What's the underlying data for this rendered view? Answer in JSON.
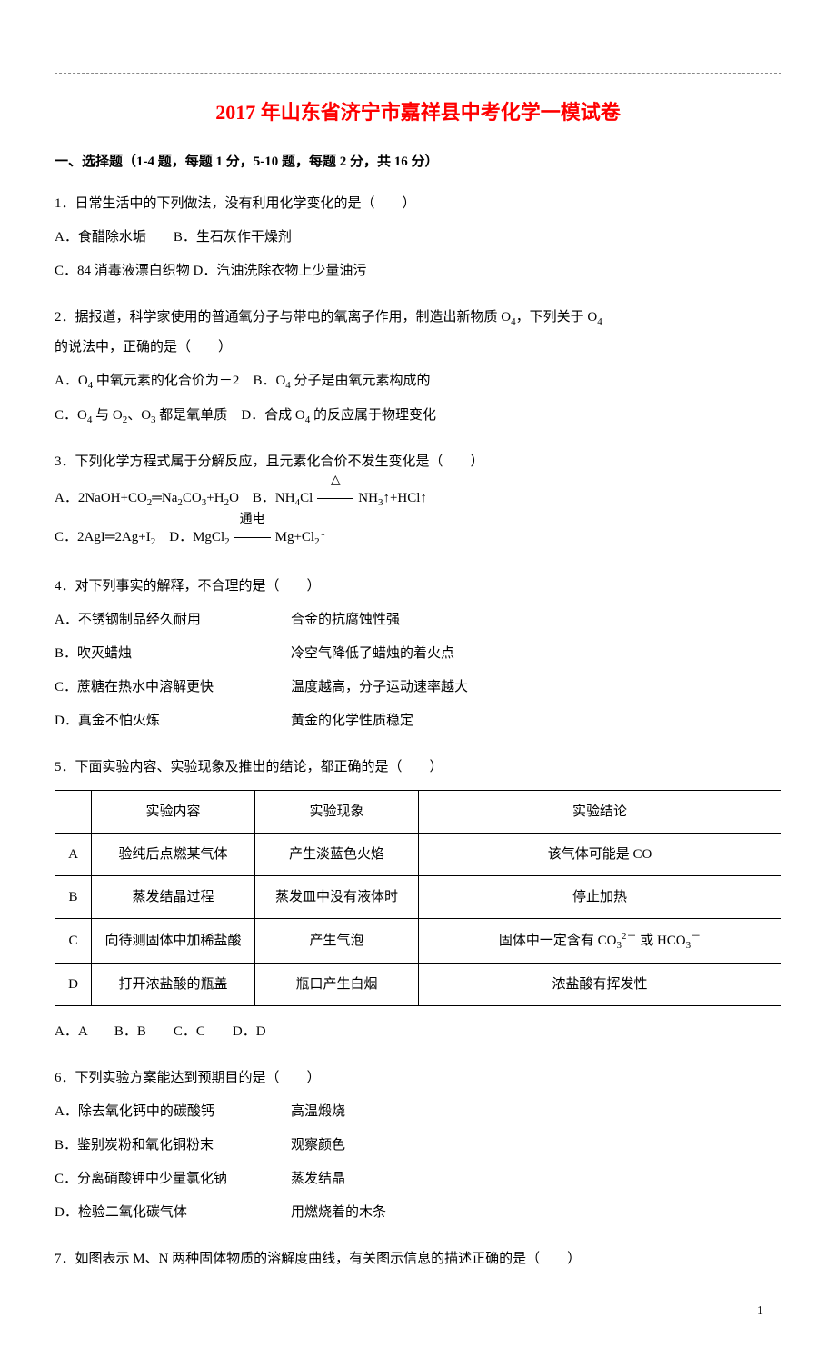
{
  "title": "2017 年山东省济宁市嘉祥县中考化学一模试卷",
  "section1_header": "一、选择题（1-4 题，每题 1 分，5-10 题，每题 2 分，共 16 分）",
  "q1": {
    "text": "1．日常生活中的下列做法，没有利用化学变化的是（　　）",
    "optA": "A．食醋除水垢",
    "optB": "B．生石灰作干燥剂",
    "optC": "C．84 消毒液漂白织物",
    "optD": "D．汽油洗除衣物上少量油污"
  },
  "q2": {
    "text_prefix": "2．据报道，科学家使用的普通氧分子与带电的氧离子作用，制造出新物质 O",
    "text_mid1": "，下列关于 O",
    "text_mid2": " 的说法中，正确的是（　　）",
    "optA_prefix": "A．O",
    "optA_suffix": " 中氧元素的化合价为－2",
    "optB_prefix": "B．O",
    "optB_suffix": " 分子是由氧元素构成的",
    "optC_prefix": "C．O",
    "optC_mid1": " 与 O",
    "optC_mid2": "、O",
    "optC_suffix": " 都是氧单质",
    "optD_prefix": "D．合成 O",
    "optD_suffix": " 的反应属于物理变化"
  },
  "q3": {
    "text": "3．下列化学方程式属于分解反应，且元素化合价不发生变化是（　　）",
    "optA_prefix": "A．2NaOH+CO",
    "optA_mid1": "═Na",
    "optA_mid2": "CO",
    "optA_mid3": "+H",
    "optA_suffix": "O",
    "optB_prefix": "B．NH",
    "optB_mid": "Cl",
    "optB_cond": "△",
    "optB_suffix1": "NH",
    "optB_suffix2": "↑+HCl↑",
    "optC_prefix": "C．2AgI═2Ag+I",
    "optD_prefix": "D．MgCl",
    "optD_cond": "通电",
    "optD_suffix": "Mg+Cl",
    "optD_end": "↑"
  },
  "q4": {
    "text": "4．对下列事实的解释，不合理的是（　　）",
    "optA_left": "A．不锈钢制品经久耐用",
    "optA_right": "合金的抗腐蚀性强",
    "optB_left": "B．吹灭蜡烛",
    "optB_right": "冷空气降低了蜡烛的着火点",
    "optC_left": "C．蔗糖在热水中溶解更快",
    "optC_right": "温度越高，分子运动速率越大",
    "optD_left": "D．真金不怕火炼",
    "optD_right": "黄金的化学性质稳定"
  },
  "q5": {
    "text": "5．下面实验内容、实验现象及推出的结论，都正确的是（　　）",
    "table": {
      "headers": [
        "",
        "实验内容",
        "实验现象",
        "实验结论"
      ],
      "rows": [
        {
          "label": "A",
          "content": "验纯后点燃某气体",
          "phenomenon": "产生淡蓝色火焰",
          "conclusion": "该气体可能是 CO"
        },
        {
          "label": "B",
          "content": "蒸发结晶过程",
          "phenomenon": "蒸发皿中没有液体时",
          "conclusion": "停止加热"
        },
        {
          "label": "C",
          "content": "向待测固体中加稀盐酸",
          "phenomenon": "产生气泡",
          "conclusion_prefix": "固体中一定含有 CO",
          "conclusion_mid": " 或 HCO"
        },
        {
          "label": "D",
          "content": "打开浓盐酸的瓶盖",
          "phenomenon": "瓶口产生白烟",
          "conclusion": "浓盐酸有挥发性"
        }
      ]
    },
    "answer_options": "A．A　　B．B　　C．C　　D．D"
  },
  "q6": {
    "text": "6．下列实验方案能达到预期目的是（　　）",
    "optA_left": "A．除去氧化钙中的碳酸钙",
    "optA_right": "高温煅烧",
    "optB_left": "B．鉴别炭粉和氧化铜粉末",
    "optB_right": "观察颜色",
    "optC_left": "C．分离硝酸钾中少量氯化钠",
    "optC_right": "蒸发结晶",
    "optD_left": "D．检验二氧化碳气体",
    "optD_right": "用燃烧着的木条"
  },
  "q7": {
    "text": "7．如图表示 M、N 两种固体物质的溶解度曲线，有关图示信息的描述正确的是（　　）"
  },
  "page_number": "1"
}
